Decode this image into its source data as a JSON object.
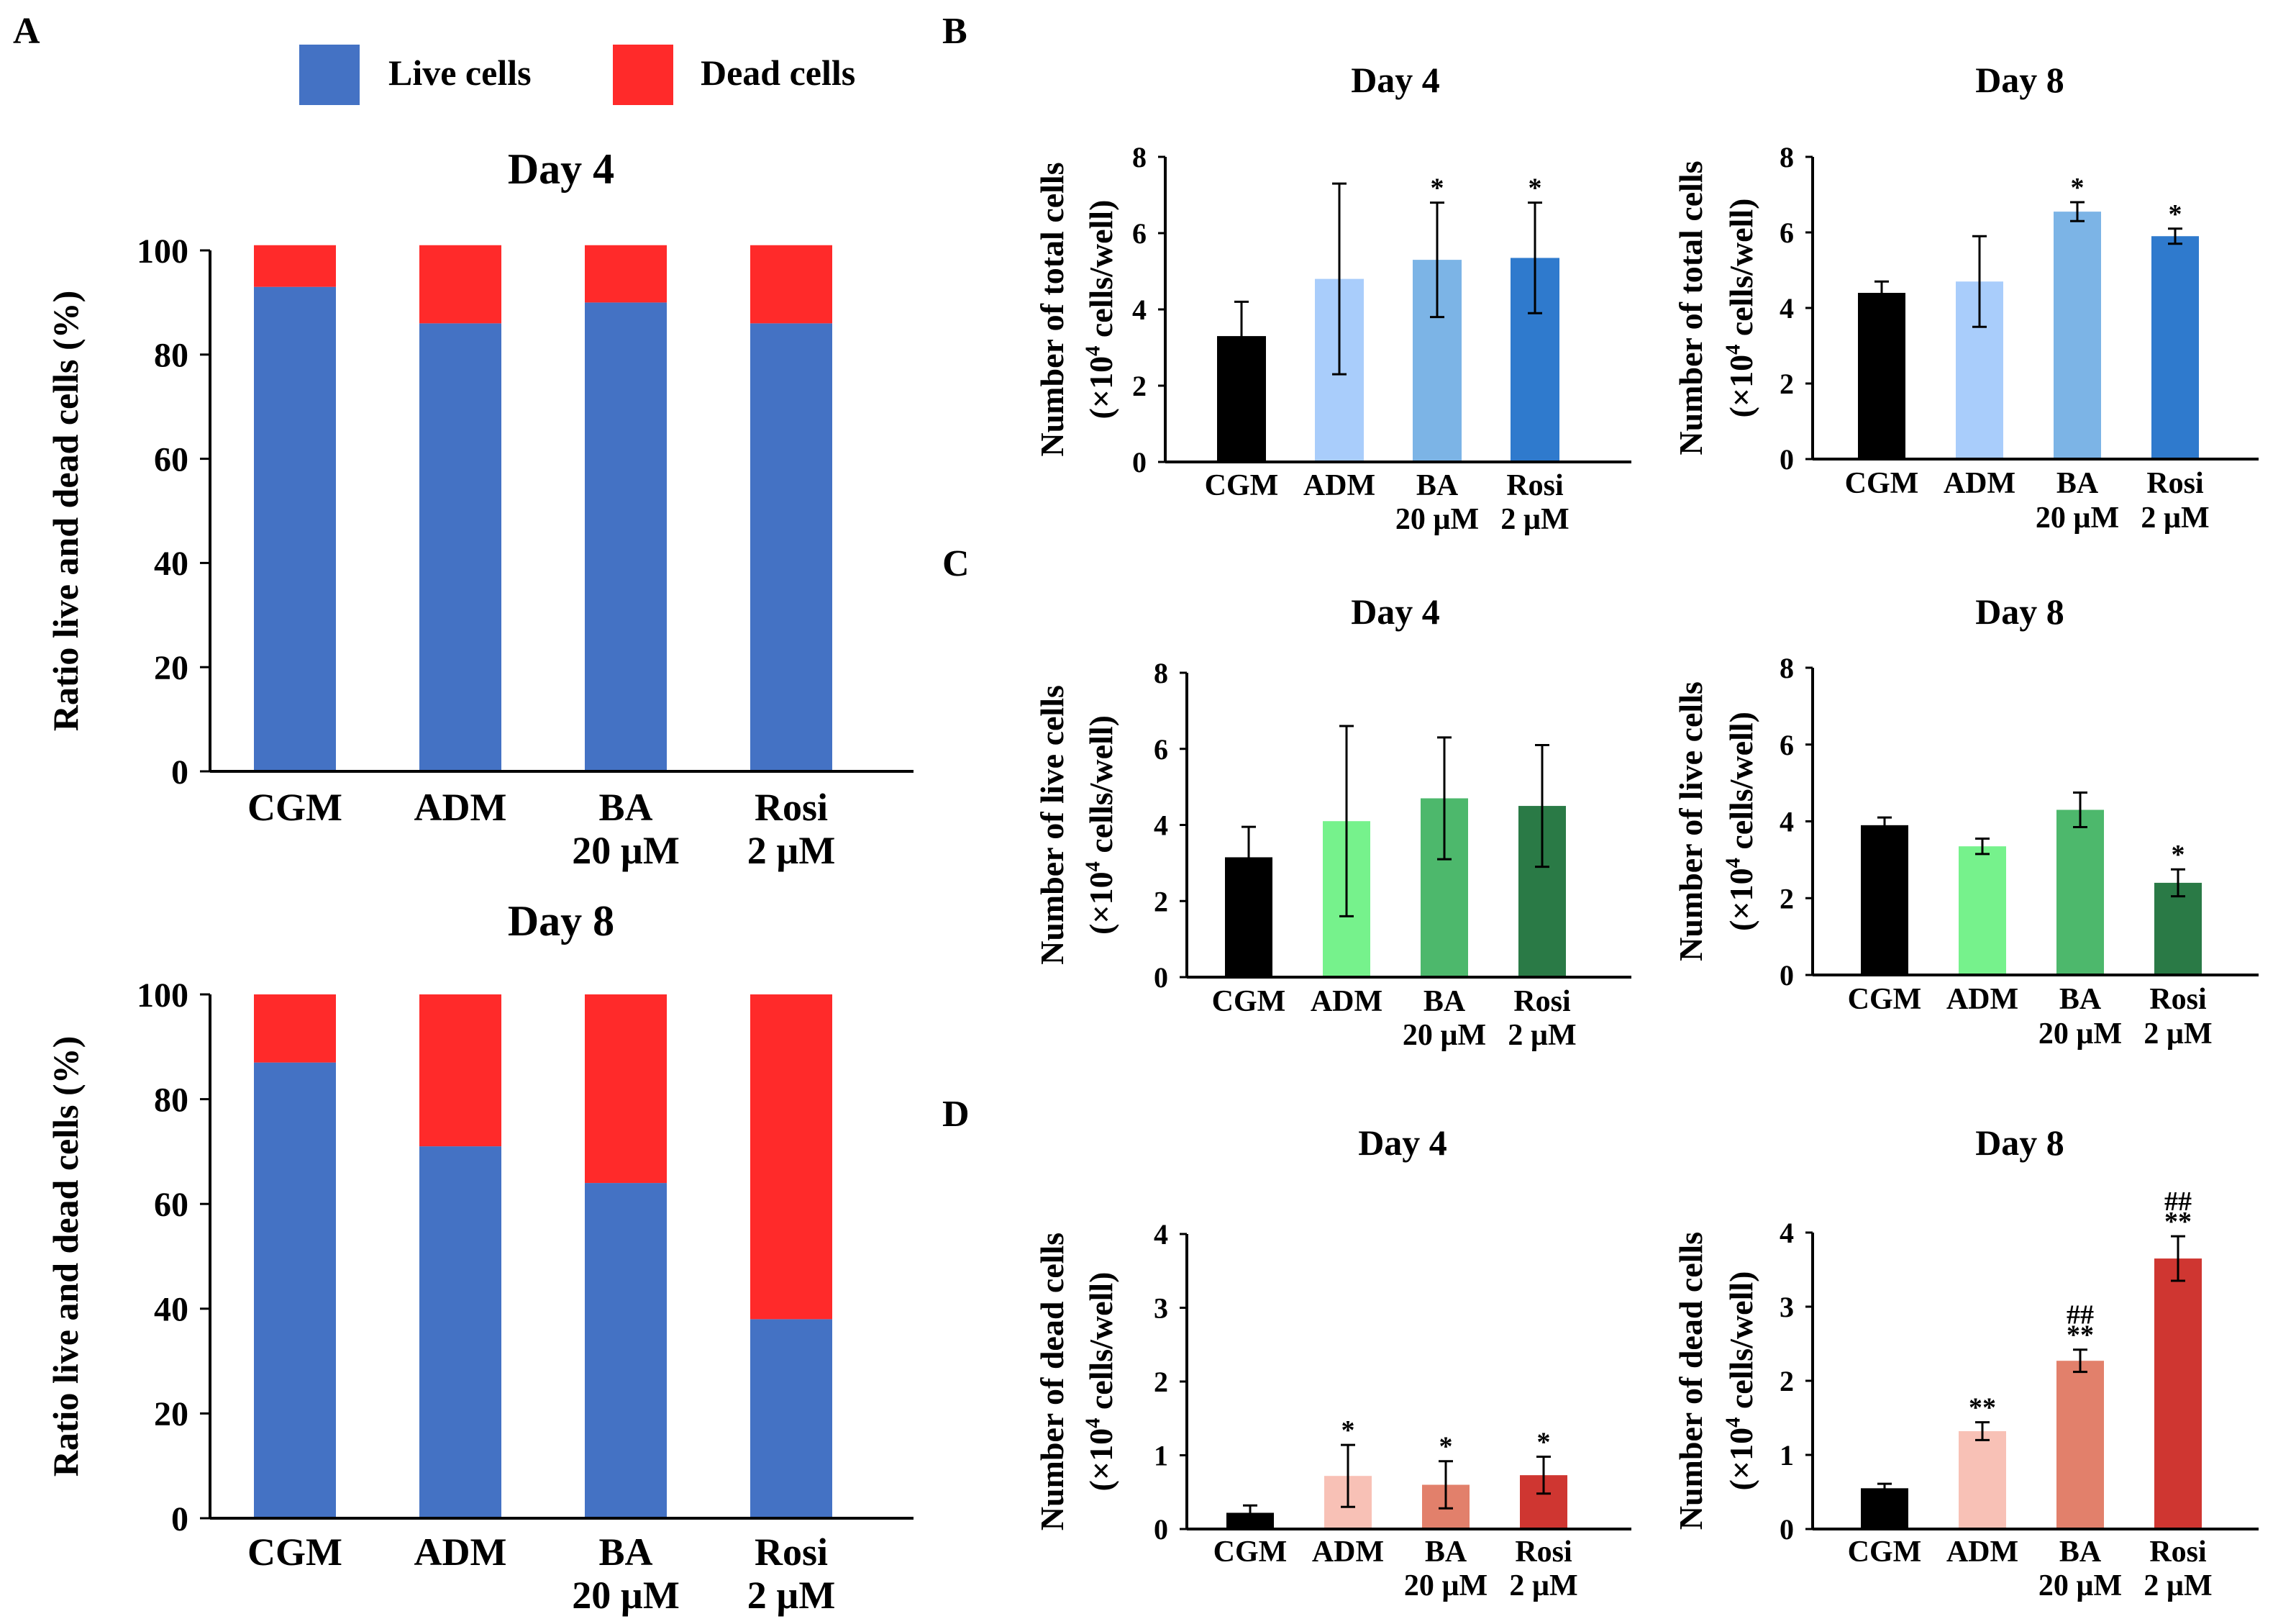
{
  "panel_labels": {
    "A": "A",
    "B": "B",
    "C": "C",
    "D": "D"
  },
  "colors": {
    "live": "#4472C4",
    "dead": "#FF2A2A",
    "black": "#000000",
    "blue": [
      "#000000",
      "#A9CDFB",
      "#7CB4E6",
      "#2F7ACD"
    ],
    "green": [
      "#000000",
      "#76F28C",
      "#4DB86C",
      "#2A7A46"
    ],
    "red": [
      "#000000",
      "#F8C1B6",
      "#E2806B",
      "#CF3631"
    ]
  },
  "legend": {
    "live": "Live cells",
    "dead": "Dead cells"
  },
  "chart_data": [
    {
      "id": "A_day4",
      "panel": "A",
      "type": "bar",
      "stacked": true,
      "title": "Day 4",
      "ylabel": "Ratio live and dead cells (%)",
      "xlabel": "",
      "ylim": [
        0,
        100
      ],
      "yticks": [
        0,
        20,
        40,
        60,
        80,
        100
      ],
      "categories": [
        [
          "CGM"
        ],
        [
          "ADM"
        ],
        [
          "BA",
          "20 µM"
        ],
        [
          "Rosi",
          "2 µM"
        ]
      ],
      "series": [
        {
          "name": "Live cells",
          "values": [
            93,
            86,
            90,
            86
          ]
        },
        {
          "name": "Dead cells",
          "values": [
            8,
            15,
            11,
            15
          ]
        }
      ]
    },
    {
      "id": "A_day8",
      "panel": "A",
      "type": "bar",
      "stacked": true,
      "title": "Day 8",
      "ylabel": "Ratio live and dead cells (%)",
      "xlabel": "",
      "ylim": [
        0,
        100
      ],
      "yticks": [
        0,
        20,
        40,
        60,
        80,
        100
      ],
      "categories": [
        [
          "CGM"
        ],
        [
          "ADM"
        ],
        [
          "BA",
          "20 µM"
        ],
        [
          "Rosi",
          "2 µM"
        ]
      ],
      "series": [
        {
          "name": "Live cells",
          "values": [
            87,
            71,
            64,
            38
          ]
        },
        {
          "name": "Dead cells",
          "values": [
            13,
            29,
            36,
            62
          ]
        }
      ]
    },
    {
      "id": "B_day4",
      "panel": "B",
      "type": "bar",
      "title": "Day 4",
      "ylabel": [
        "Number of total cells",
        "(×10^4 cells/well)"
      ],
      "ylim": [
        0,
        8
      ],
      "yticks": [
        0,
        2,
        4,
        6,
        8
      ],
      "palette": "blue",
      "categories": [
        [
          "CGM"
        ],
        [
          "ADM"
        ],
        [
          "BA",
          "20 µM"
        ],
        [
          "Rosi",
          "2 µM"
        ]
      ],
      "values": [
        3.3,
        4.8,
        5.3,
        5.35
      ],
      "errors": [
        0.9,
        2.5,
        1.5,
        1.45
      ],
      "annotations": [
        [],
        [],
        [
          "*"
        ],
        [
          "*"
        ]
      ]
    },
    {
      "id": "B_day8",
      "panel": "B",
      "type": "bar",
      "title": "Day 8",
      "ylabel": [
        "Number of total cells",
        "(×10^4 cells/well)"
      ],
      "ylim": [
        0,
        8
      ],
      "yticks": [
        0,
        2,
        4,
        6,
        8
      ],
      "palette": "blue",
      "categories": [
        [
          "CGM"
        ],
        [
          "ADM"
        ],
        [
          "BA",
          "20 µM"
        ],
        [
          "Rosi",
          "2 µM"
        ]
      ],
      "values": [
        4.4,
        4.7,
        6.55,
        5.9
      ],
      "errors": [
        0.3,
        1.2,
        0.25,
        0.2
      ],
      "annotations": [
        [],
        [],
        [
          "*"
        ],
        [
          "*"
        ]
      ]
    },
    {
      "id": "C_day4",
      "panel": "C",
      "type": "bar",
      "title": "Day 4",
      "ylabel": [
        "Number of live cells",
        "(×10^4 cells/well)"
      ],
      "ylim": [
        0,
        8
      ],
      "yticks": [
        0,
        2,
        4,
        6,
        8
      ],
      "palette": "green",
      "categories": [
        [
          "CGM"
        ],
        [
          "ADM"
        ],
        [
          "BA",
          "20 µM"
        ],
        [
          "Rosi",
          "2 µM"
        ]
      ],
      "values": [
        3.15,
        4.1,
        4.7,
        4.5
      ],
      "errors": [
        0.8,
        2.5,
        1.6,
        1.6
      ],
      "annotations": [
        [],
        [],
        [],
        []
      ]
    },
    {
      "id": "C_day8",
      "panel": "C",
      "type": "bar",
      "title": "Day 8",
      "ylabel": [
        "Number of live cells",
        "(×10^4 cells/well)"
      ],
      "ylim": [
        0,
        8
      ],
      "yticks": [
        0,
        2,
        4,
        6,
        8
      ],
      "palette": "green",
      "categories": [
        [
          "CGM"
        ],
        [
          "ADM"
        ],
        [
          "BA",
          "20 µM"
        ],
        [
          "Rosi",
          "2 µM"
        ]
      ],
      "values": [
        3.9,
        3.35,
        4.3,
        2.4
      ],
      "errors": [
        0.2,
        0.2,
        0.45,
        0.35
      ],
      "annotations": [
        [],
        [],
        [],
        [
          "*"
        ]
      ]
    },
    {
      "id": "D_day4",
      "panel": "D",
      "type": "bar",
      "title": "Day 4",
      "ylabel": [
        "Number of dead cells",
        "(×10^4 cells/well)"
      ],
      "ylim": [
        0,
        4
      ],
      "yticks": [
        0,
        1,
        2,
        3,
        4
      ],
      "palette": "red",
      "categories": [
        [
          "CGM"
        ],
        [
          "ADM"
        ],
        [
          "BA",
          "20 µM"
        ],
        [
          "Rosi",
          "2 µM"
        ]
      ],
      "values": [
        0.22,
        0.72,
        0.6,
        0.73
      ],
      "errors": [
        0.1,
        0.42,
        0.32,
        0.25
      ],
      "annotations": [
        [],
        [
          "*"
        ],
        [
          "*"
        ],
        [
          "*"
        ]
      ]
    },
    {
      "id": "D_day8",
      "panel": "D",
      "type": "bar",
      "title": "Day 8",
      "ylabel": [
        "Number of dead cells",
        "(×10^4 cells/well)"
      ],
      "ylim": [
        0,
        4
      ],
      "yticks": [
        0,
        1,
        2,
        3,
        4
      ],
      "palette": "red",
      "categories": [
        [
          "CGM"
        ],
        [
          "ADM"
        ],
        [
          "BA",
          "20 µM"
        ],
        [
          "Rosi",
          "2 µM"
        ]
      ],
      "values": [
        0.55,
        1.32,
        2.27,
        3.65
      ],
      "errors": [
        0.06,
        0.12,
        0.15,
        0.3
      ],
      "annotations": [
        [],
        [
          "**"
        ],
        [
          "**",
          "##"
        ],
        [
          "**",
          "##"
        ]
      ]
    }
  ]
}
